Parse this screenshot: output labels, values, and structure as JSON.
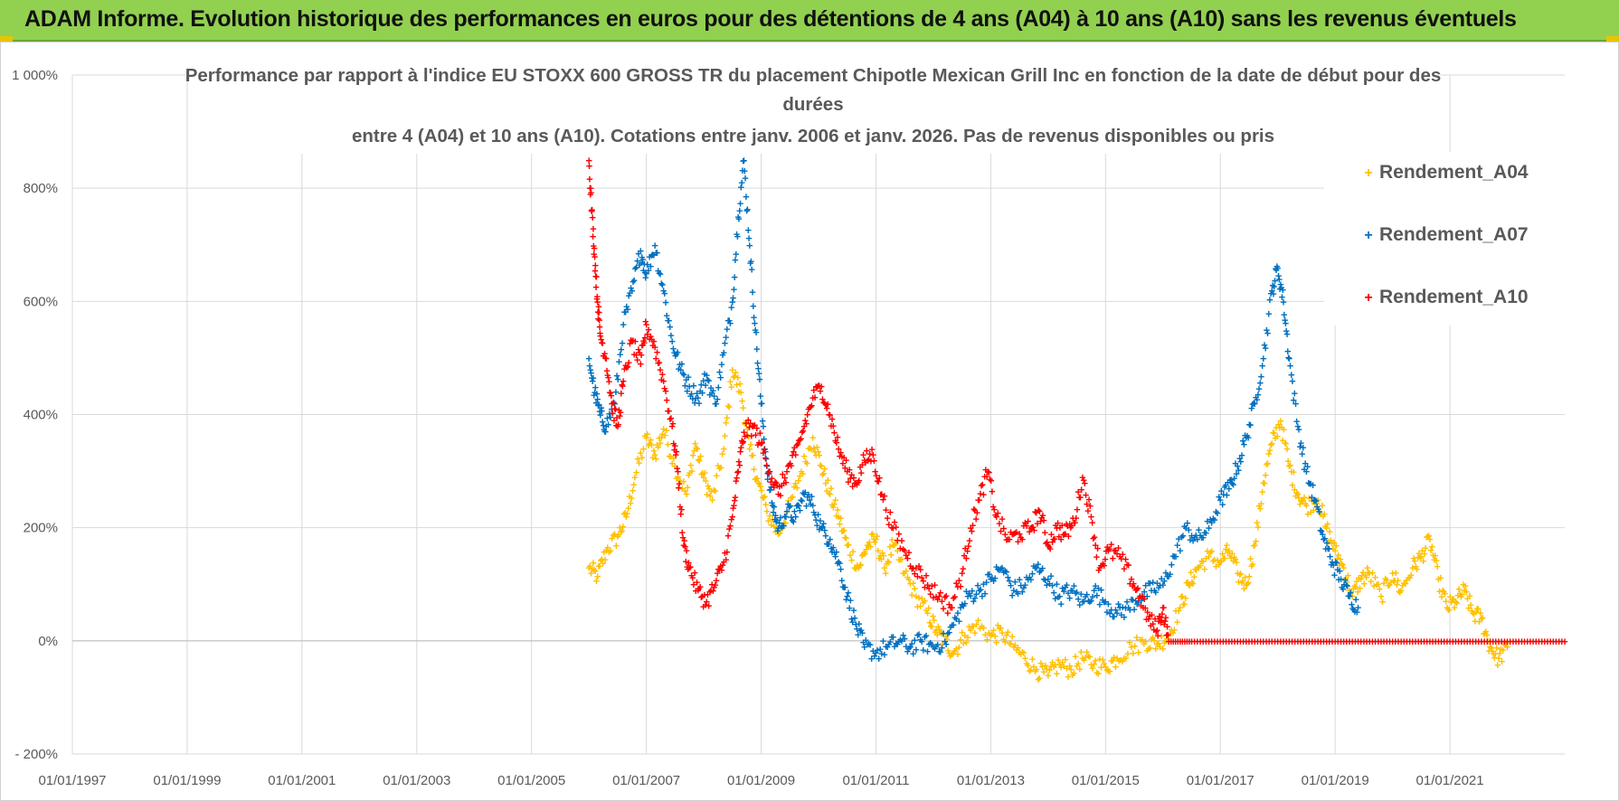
{
  "header": {
    "title": "ADAM Informe. Evolution historique des performances en euros pour des détentions de 4 ans (A04) à 10 ans (A10) sans les revenus éventuels"
  },
  "chart_data": {
    "type": "scatter",
    "title_lines": [
      "Performance par rapport à l'indice EU STOXX 600 GROSS TR  du placement Chipotle Mexican Grill Inc en fonction de la date de début pour des",
      "durées",
      "entre 4 (A04) et 10 ans (A10). Cotations entre janv. 2006 et janv. 2026. Pas de revenus disponibles ou pris"
    ],
    "xlabel": "",
    "ylabel": "",
    "xlim": [
      1997.0,
      2023.0
    ],
    "ylim": [
      -200,
      1000
    ],
    "y_ticks": [
      -200,
      0,
      200,
      400,
      600,
      800,
      1000
    ],
    "y_tick_labels": [
      "- 200%",
      "0%",
      "200%",
      "400%",
      "600%",
      "800%",
      "1 000%"
    ],
    "x_ticks": [
      1997,
      1999,
      2001,
      2003,
      2005,
      2007,
      2009,
      2011,
      2013,
      2015,
      2017,
      2019,
      2021
    ],
    "x_tick_labels": [
      "01/01/1997",
      "01/01/1999",
      "01/01/2001",
      "01/01/2003",
      "01/01/2005",
      "01/01/2007",
      "01/01/2009",
      "01/01/2011",
      "01/01/2013",
      "01/01/2015",
      "01/01/2017",
      "01/01/2019",
      "01/01/2021"
    ],
    "grid": true,
    "marker": "+",
    "legend_position": "top-right",
    "series": [
      {
        "name": "Rendement_A04",
        "color": "#ffc000",
        "points": [
          [
            2006.0,
            130
          ],
          [
            2006.15,
            115
          ],
          [
            2006.3,
            160
          ],
          [
            2006.5,
            185
          ],
          [
            2006.65,
            220
          ],
          [
            2006.8,
            290
          ],
          [
            2007.0,
            360
          ],
          [
            2007.15,
            330
          ],
          [
            2007.3,
            375
          ],
          [
            2007.5,
            310
          ],
          [
            2007.7,
            260
          ],
          [
            2007.85,
            350
          ],
          [
            2008.0,
            290
          ],
          [
            2008.15,
            250
          ],
          [
            2008.35,
            340
          ],
          [
            2008.5,
            480
          ],
          [
            2008.65,
            440
          ],
          [
            2008.8,
            340
          ],
          [
            2008.95,
            280
          ],
          [
            2009.1,
            230
          ],
          [
            2009.3,
            190
          ],
          [
            2009.5,
            240
          ],
          [
            2009.7,
            300
          ],
          [
            2009.9,
            360
          ],
          [
            2010.05,
            310
          ],
          [
            2010.2,
            260
          ],
          [
            2010.35,
            220
          ],
          [
            2010.5,
            170
          ],
          [
            2010.7,
            130
          ],
          [
            2010.85,
            170
          ],
          [
            2011.0,
            180
          ],
          [
            2011.15,
            130
          ],
          [
            2011.3,
            170
          ],
          [
            2011.5,
            120
          ],
          [
            2011.7,
            80
          ],
          [
            2011.9,
            50
          ],
          [
            2012.05,
            20
          ],
          [
            2012.2,
            0
          ],
          [
            2012.35,
            -20
          ],
          [
            2012.55,
            10
          ],
          [
            2012.75,
            30
          ],
          [
            2013.0,
            10
          ],
          [
            2013.2,
            15
          ],
          [
            2013.4,
            -10
          ],
          [
            2013.6,
            -30
          ],
          [
            2013.8,
            -50
          ],
          [
            2014.0,
            -60
          ],
          [
            2014.2,
            -40
          ],
          [
            2014.4,
            -50
          ],
          [
            2014.6,
            -30
          ],
          [
            2014.8,
            -40
          ],
          [
            2015.0,
            -45
          ],
          [
            2015.2,
            -30
          ],
          [
            2015.45,
            -10
          ],
          [
            2015.7,
            0
          ],
          [
            2015.9,
            -5
          ],
          [
            2016.1,
            10
          ],
          [
            2016.3,
            60
          ],
          [
            2016.45,
            100
          ],
          [
            2016.6,
            130
          ],
          [
            2016.8,
            150
          ],
          [
            2017.0,
            140
          ],
          [
            2017.15,
            160
          ],
          [
            2017.3,
            120
          ],
          [
            2017.45,
            100
          ],
          [
            2017.6,
            170
          ],
          [
            2017.75,
            280
          ],
          [
            2017.9,
            350
          ],
          [
            2018.05,
            390
          ],
          [
            2018.2,
            310
          ],
          [
            2018.35,
            260
          ],
          [
            2018.5,
            240
          ],
          [
            2018.7,
            250
          ],
          [
            2018.85,
            200
          ],
          [
            2019.0,
            160
          ],
          [
            2019.15,
            130
          ],
          [
            2019.3,
            80
          ],
          [
            2019.45,
            110
          ],
          [
            2019.6,
            120
          ],
          [
            2019.8,
            80
          ],
          [
            2020.0,
            120
          ],
          [
            2020.15,
            90
          ],
          [
            2020.35,
            130
          ],
          [
            2020.5,
            150
          ],
          [
            2020.65,
            180
          ],
          [
            2020.8,
            110
          ],
          [
            2020.95,
            60
          ],
          [
            2021.1,
            70
          ],
          [
            2021.25,
            90
          ],
          [
            2021.4,
            50
          ],
          [
            2021.55,
            40
          ],
          [
            2021.7,
            -10
          ],
          [
            2021.85,
            -30
          ],
          [
            2022.0,
            -10
          ]
        ]
      },
      {
        "name": "Rendement_A07",
        "color": "#0070c0",
        "points": [
          [
            2006.0,
            500
          ],
          [
            2006.1,
            440
          ],
          [
            2006.2,
            400
          ],
          [
            2006.3,
            380
          ],
          [
            2006.45,
            420
          ],
          [
            2006.6,
            560
          ],
          [
            2006.75,
            620
          ],
          [
            2006.9,
            690
          ],
          [
            2007.0,
            650
          ],
          [
            2007.15,
            700
          ],
          [
            2007.3,
            620
          ],
          [
            2007.45,
            530
          ],
          [
            2007.6,
            480
          ],
          [
            2007.75,
            450
          ],
          [
            2007.9,
            430
          ],
          [
            2008.05,
            470
          ],
          [
            2008.2,
            420
          ],
          [
            2008.35,
            510
          ],
          [
            2008.5,
            600
          ],
          [
            2008.6,
            750
          ],
          [
            2008.7,
            850
          ],
          [
            2008.8,
            700
          ],
          [
            2008.9,
            550
          ],
          [
            2009.0,
            420
          ],
          [
            2009.1,
            310
          ],
          [
            2009.2,
            240
          ],
          [
            2009.3,
            200
          ],
          [
            2009.45,
            230
          ],
          [
            2009.6,
            220
          ],
          [
            2009.75,
            260
          ],
          [
            2009.9,
            240
          ],
          [
            2010.05,
            200
          ],
          [
            2010.2,
            180
          ],
          [
            2010.35,
            140
          ],
          [
            2010.5,
            80
          ],
          [
            2010.65,
            30
          ],
          [
            2010.8,
            -10
          ],
          [
            2011.0,
            -20
          ],
          [
            2011.2,
            -10
          ],
          [
            2011.4,
            0
          ],
          [
            2011.6,
            -10
          ],
          [
            2011.8,
            0
          ],
          [
            2012.0,
            -10
          ],
          [
            2012.2,
            0
          ],
          [
            2012.4,
            40
          ],
          [
            2012.6,
            80
          ],
          [
            2012.8,
            90
          ],
          [
            2013.0,
            110
          ],
          [
            2013.2,
            130
          ],
          [
            2013.4,
            90
          ],
          [
            2013.6,
            100
          ],
          [
            2013.8,
            130
          ],
          [
            2014.0,
            110
          ],
          [
            2014.2,
            80
          ],
          [
            2014.4,
            90
          ],
          [
            2014.6,
            70
          ],
          [
            2014.8,
            90
          ],
          [
            2015.0,
            70
          ],
          [
            2015.2,
            50
          ],
          [
            2015.4,
            60
          ],
          [
            2015.6,
            80
          ],
          [
            2015.8,
            90
          ],
          [
            2016.0,
            100
          ],
          [
            2016.2,
            150
          ],
          [
            2016.4,
            200
          ],
          [
            2016.6,
            180
          ],
          [
            2016.8,
            200
          ],
          [
            2017.0,
            250
          ],
          [
            2017.15,
            270
          ],
          [
            2017.3,
            310
          ],
          [
            2017.45,
            360
          ],
          [
            2017.6,
            420
          ],
          [
            2017.75,
            500
          ],
          [
            2017.9,
            620
          ],
          [
            2018.0,
            660
          ],
          [
            2018.1,
            600
          ],
          [
            2018.2,
            500
          ],
          [
            2018.35,
            380
          ],
          [
            2018.5,
            300
          ],
          [
            2018.65,
            250
          ],
          [
            2018.8,
            180
          ],
          [
            2018.95,
            140
          ],
          [
            2019.1,
            110
          ],
          [
            2019.25,
            80
          ],
          [
            2019.4,
            60
          ]
        ]
      },
      {
        "name": "Rendement_A10",
        "color": "#ff0000",
        "points": [
          [
            2006.0,
            850
          ],
          [
            2006.05,
            760
          ],
          [
            2006.1,
            680
          ],
          [
            2006.15,
            600
          ],
          [
            2006.2,
            540
          ],
          [
            2006.3,
            500
          ],
          [
            2006.4,
            420
          ],
          [
            2006.5,
            380
          ],
          [
            2006.6,
            460
          ],
          [
            2006.75,
            530
          ],
          [
            2006.9,
            490
          ],
          [
            2007.0,
            560
          ],
          [
            2007.15,
            520
          ],
          [
            2007.3,
            460
          ],
          [
            2007.45,
            380
          ],
          [
            2007.55,
            300
          ],
          [
            2007.65,
            170
          ],
          [
            2007.75,
            130
          ],
          [
            2007.9,
            90
          ],
          [
            2008.05,
            70
          ],
          [
            2008.2,
            100
          ],
          [
            2008.35,
            140
          ],
          [
            2008.5,
            220
          ],
          [
            2008.6,
            300
          ],
          [
            2008.7,
            370
          ],
          [
            2008.85,
            380
          ],
          [
            2009.0,
            350
          ],
          [
            2009.15,
            300
          ],
          [
            2009.3,
            260
          ],
          [
            2009.45,
            300
          ],
          [
            2009.6,
            330
          ],
          [
            2009.75,
            380
          ],
          [
            2009.9,
            430
          ],
          [
            2010.05,
            450
          ],
          [
            2010.2,
            400
          ],
          [
            2010.35,
            340
          ],
          [
            2010.5,
            300
          ],
          [
            2010.65,
            280
          ],
          [
            2010.8,
            320
          ],
          [
            2010.95,
            330
          ],
          [
            2011.1,
            260
          ],
          [
            2011.3,
            200
          ],
          [
            2011.5,
            160
          ],
          [
            2011.7,
            130
          ],
          [
            2011.9,
            100
          ],
          [
            2012.1,
            80
          ],
          [
            2012.3,
            60
          ],
          [
            2012.5,
            120
          ],
          [
            2012.65,
            200
          ],
          [
            2012.8,
            250
          ],
          [
            2012.95,
            300
          ],
          [
            2013.1,
            220
          ],
          [
            2013.3,
            180
          ],
          [
            2013.5,
            190
          ],
          [
            2013.7,
            200
          ],
          [
            2013.85,
            230
          ],
          [
            2014.0,
            170
          ],
          [
            2014.15,
            200
          ],
          [
            2014.3,
            190
          ],
          [
            2014.45,
            210
          ],
          [
            2014.6,
            290
          ],
          [
            2014.75,
            220
          ],
          [
            2014.9,
            130
          ],
          [
            2015.05,
            160
          ],
          [
            2015.25,
            150
          ],
          [
            2015.45,
            110
          ],
          [
            2015.6,
            80
          ],
          [
            2015.75,
            40
          ],
          [
            2015.9,
            20
          ],
          [
            2016.0,
            60
          ],
          [
            2016.1,
            0
          ],
          [
            2016.5,
            0
          ],
          [
            2017.0,
            0
          ],
          [
            2017.5,
            0
          ],
          [
            2018.0,
            0
          ],
          [
            2018.5,
            0
          ],
          [
            2019.0,
            0
          ],
          [
            2019.5,
            0
          ],
          [
            2020.0,
            0
          ],
          [
            2020.5,
            0
          ],
          [
            2021.0,
            0
          ],
          [
            2021.5,
            0
          ],
          [
            2022.0,
            0
          ],
          [
            2022.5,
            0
          ],
          [
            2023.0,
            0
          ]
        ]
      }
    ]
  }
}
